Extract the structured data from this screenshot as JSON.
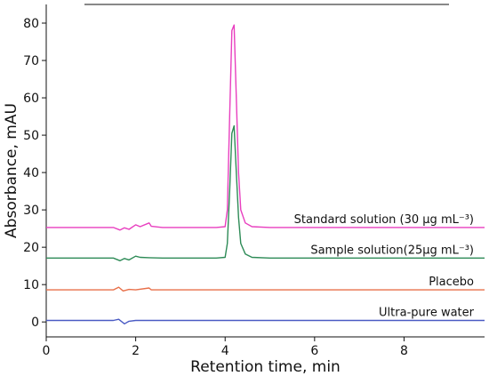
{
  "chart_data": {
    "type": "line",
    "xlabel": "Retention time, min",
    "ylabel": "Absorbance, mAU",
    "xlim": [
      0,
      9.8
    ],
    "ylim": [
      -4,
      85
    ],
    "x_ticks": [
      "0",
      "2",
      "4",
      "6",
      "8"
    ],
    "y_ticks": [
      "0",
      "10",
      "20",
      "30",
      "40",
      "50",
      "60",
      "70",
      "80"
    ],
    "grid": false,
    "series": [
      {
        "name": "Standard solution (30 μg mL⁻³)",
        "color": "#e83fbf",
        "x": [
          0.0,
          1.5,
          1.65,
          1.75,
          1.85,
          2.0,
          2.1,
          2.3,
          2.35,
          2.6,
          3.8,
          4.0,
          4.05,
          4.1,
          4.15,
          4.2,
          4.25,
          4.3,
          4.35,
          4.45,
          4.6,
          5.0,
          6.0,
          8.0,
          9.8
        ],
        "y": [
          25.3,
          25.3,
          24.6,
          25.2,
          24.8,
          26.0,
          25.5,
          26.5,
          25.6,
          25.3,
          25.3,
          25.5,
          30.0,
          55.0,
          78.0,
          79.5,
          60.0,
          40.0,
          30.0,
          26.5,
          25.5,
          25.3,
          25.3,
          25.3,
          25.3
        ]
      },
      {
        "name": "Sample solution(25μg mL⁻³)",
        "color": "#2e8b57",
        "x": [
          0.0,
          1.5,
          1.65,
          1.75,
          1.85,
          2.0,
          2.1,
          2.3,
          2.6,
          3.8,
          4.0,
          4.05,
          4.1,
          4.15,
          4.2,
          4.25,
          4.3,
          4.35,
          4.45,
          4.6,
          5.0,
          6.0,
          8.0,
          9.8
        ],
        "y": [
          17.1,
          17.1,
          16.4,
          17.0,
          16.6,
          17.6,
          17.3,
          17.2,
          17.1,
          17.1,
          17.3,
          21.0,
          35.0,
          50.5,
          52.5,
          40.0,
          28.0,
          21.0,
          18.2,
          17.3,
          17.1,
          17.1,
          17.1,
          17.1
        ]
      },
      {
        "name": "Placebo",
        "color": "#e8704a",
        "x": [
          0.0,
          1.5,
          1.62,
          1.72,
          1.85,
          2.0,
          2.3,
          2.35,
          2.6,
          6.0,
          9.8
        ],
        "y": [
          8.6,
          8.6,
          9.3,
          8.3,
          8.7,
          8.6,
          9.1,
          8.6,
          8.6,
          8.6,
          8.6
        ]
      },
      {
        "name": "Ultra-pure water",
        "color": "#4a5bc4",
        "x": [
          0.0,
          1.5,
          1.62,
          1.75,
          1.85,
          2.0,
          2.6,
          6.0,
          9.8
        ],
        "y": [
          0.4,
          0.4,
          0.7,
          -0.5,
          0.2,
          0.4,
          0.4,
          0.4,
          0.4
        ]
      }
    ]
  }
}
